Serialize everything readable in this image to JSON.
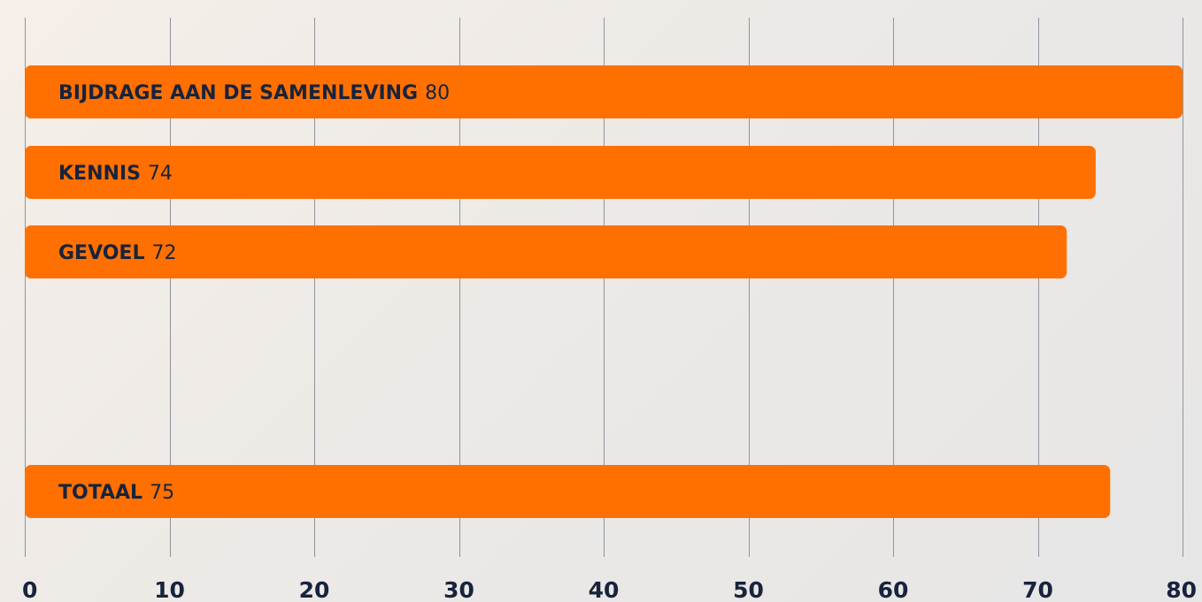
{
  "chart_data": {
    "type": "bar",
    "orientation": "horizontal",
    "categories": [
      "BIJDRAGE AAN DE SAMENLEVING",
      "KENNIS",
      "GEVOEL",
      "TOTAAL"
    ],
    "values": [
      80,
      74,
      72,
      75
    ],
    "value_labels": [
      "80",
      "74",
      "72",
      "75"
    ],
    "xlim": [
      0,
      80
    ],
    "x_ticks": [
      "0",
      "10",
      "20",
      "30",
      "40",
      "50",
      "60",
      "70",
      "80"
    ],
    "grid": true,
    "legend": "none",
    "title": "",
    "xlabel": "",
    "ylabel": "",
    "colors": {
      "bar": "#ff7000",
      "text": "#18233d",
      "grid": "#8f949c"
    }
  }
}
